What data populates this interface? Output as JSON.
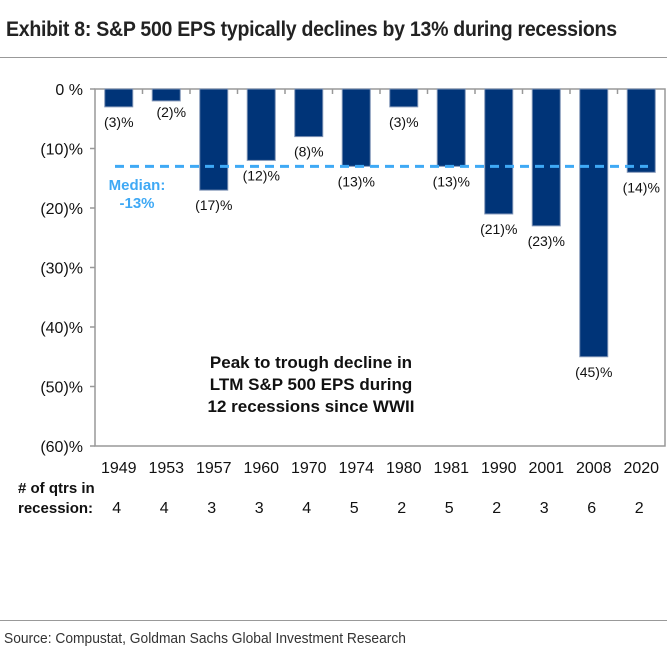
{
  "title": "Exhibit 8: S&P 500 EPS typically declines by 13% during recessions",
  "source": "Source: Compustat, Goldman Sachs Global Investment Research",
  "chart_data": {
    "type": "bar",
    "categories": [
      "1949",
      "1953",
      "1957",
      "1960",
      "1970",
      "1974",
      "1980",
      "1981",
      "1990",
      "2001",
      "2008",
      "2020"
    ],
    "values": [
      -3,
      -2,
      -17,
      -12,
      -8,
      -13,
      -3,
      -13,
      -21,
      -23,
      -45,
      -14
    ],
    "data_labels": [
      "(3)%",
      "(2)%",
      "(17)%",
      "(12)%",
      "(8)%",
      "(13)%",
      "(3)%",
      "(13)%",
      "(21)%",
      "(23)%",
      "(45)%",
      "(14)%"
    ],
    "ylim": [
      -60,
      0
    ],
    "yticks": [
      0,
      -10,
      -20,
      -30,
      -40,
      -50,
      -60
    ],
    "ytick_labels": [
      "0 %",
      "(10)%",
      "(20)%",
      "(30)%",
      "(40)%",
      "(50)%",
      "(60)%"
    ],
    "grid": false,
    "bar_color": "#003478",
    "median": {
      "value": -13,
      "label_line1": "Median:",
      "label_line2": "-13%",
      "color": "#3fa9f5"
    },
    "annotation": [
      "Peak to trough decline in",
      "LTM S&P 500 EPS during",
      "12 recessions since WWII"
    ],
    "qtrs_label_line1": "# of qtrs in",
    "qtrs_label_line2": "recession:",
    "qtrs_in_recession": [
      4,
      4,
      3,
      3,
      4,
      5,
      2,
      5,
      2,
      3,
      6,
      2
    ]
  }
}
